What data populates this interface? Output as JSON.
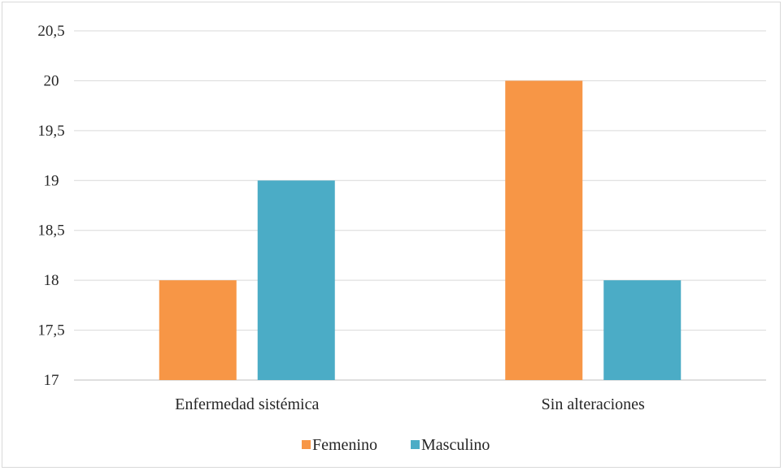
{
  "chart_data": {
    "type": "bar",
    "title": "",
    "xlabel": "",
    "ylabel": "",
    "categories": [
      "Enfermedad sistémica",
      "Sin alteraciones"
    ],
    "series": [
      {
        "name": "Femenino",
        "values": [
          18,
          20
        ],
        "color": "#f79646"
      },
      {
        "name": "Masculino",
        "values": [
          19,
          18
        ],
        "color": "#4bacc6"
      }
    ],
    "ylim": [
      17,
      20.5
    ],
    "y_ticks": [
      17,
      17.5,
      18,
      18.5,
      19,
      19.5,
      20,
      20.5
    ],
    "y_tick_labels": [
      "17",
      "17,5",
      "18",
      "18,5",
      "19",
      "19,5",
      "20",
      "20,5"
    ],
    "grid": true,
    "legend_position": "bottom"
  }
}
